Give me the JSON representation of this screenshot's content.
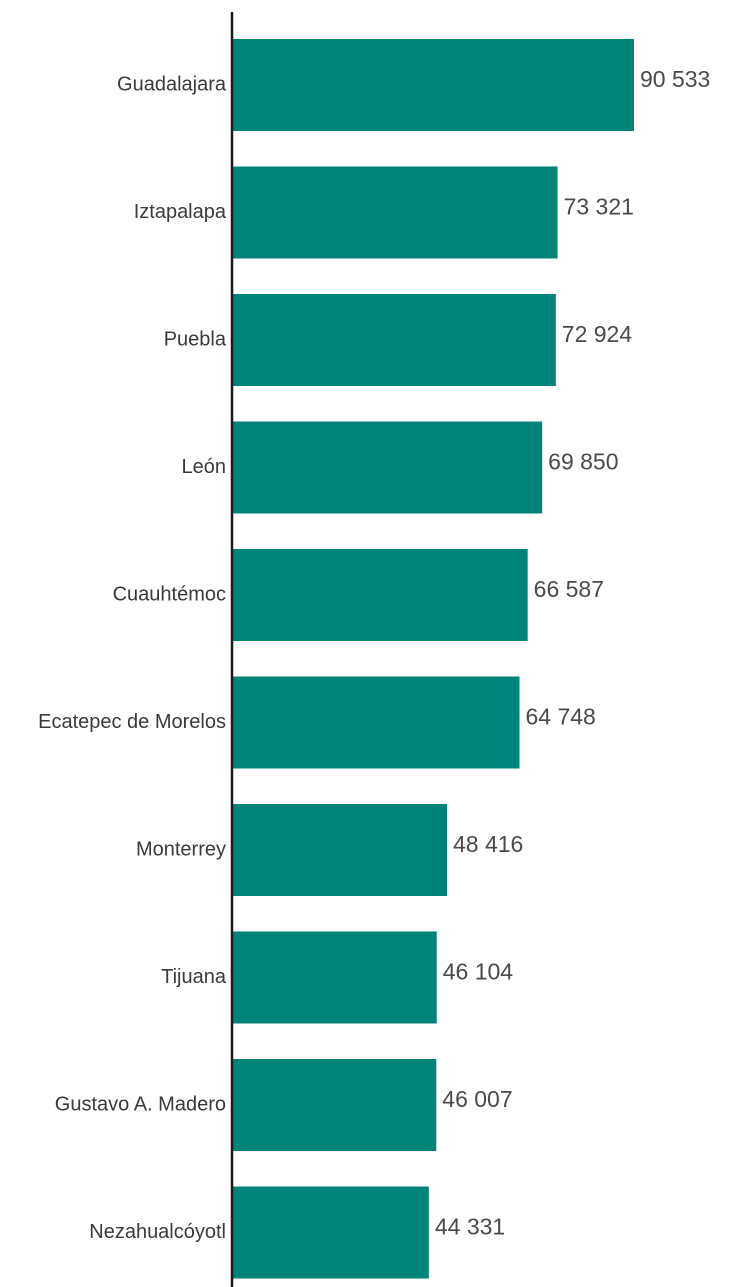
{
  "chart_data": {
    "type": "bar",
    "orientation": "horizontal",
    "categories": [
      "Guadalajara",
      "Iztapalapa",
      "Puebla",
      "León",
      "Cuauhtémoc",
      "Ecatepec de Morelos",
      "Monterrey",
      "Tijuana",
      "Gustavo A. Madero",
      "Nezahualcóyotl"
    ],
    "values": [
      90533,
      73321,
      72924,
      69850,
      66587,
      64748,
      48416,
      46104,
      46007,
      44331
    ],
    "value_labels": [
      "90 533",
      "73 321",
      "72 924",
      "69 850",
      "66 587",
      "64 748",
      "48 416",
      "46 104",
      "46 007",
      "44 331"
    ],
    "title": "",
    "xlabel": "",
    "ylabel": "",
    "xlim": [
      0,
      90533
    ],
    "grid": false,
    "legend": "none",
    "bar_color": "#00847a",
    "axis_color": "#1a1a1a"
  }
}
